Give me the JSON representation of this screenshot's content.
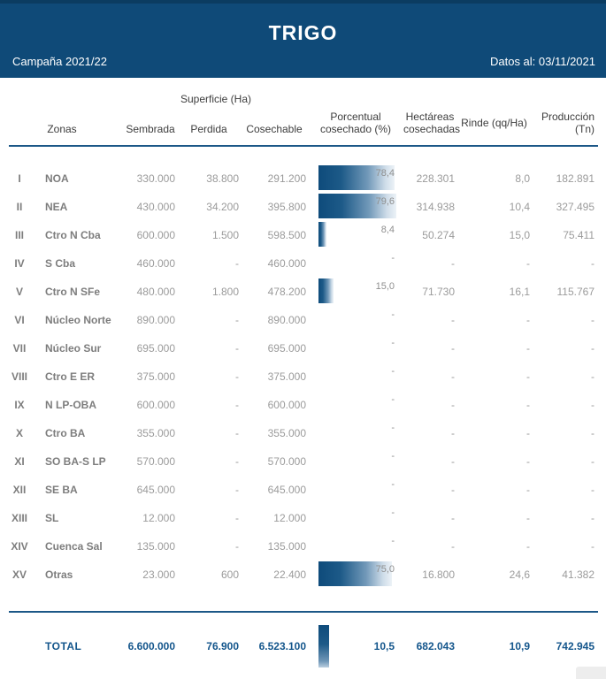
{
  "header": {
    "title": "TRIGO",
    "campaign": "Campaña 2021/22",
    "data_date": "Datos al: 03/11/2021"
  },
  "table": {
    "group_header": "Superficie (Ha)",
    "columns": {
      "zonas": "Zonas",
      "sembrada": "Sembrada",
      "perdida": "Perdida",
      "cosechable": "Cosechable",
      "pct": "Porcentual cosechado (%)",
      "hectareas": "Hectáreas cosechadas",
      "rinde": "Rinde (qq/Ha)",
      "produccion": "Producción (Tn)"
    },
    "rows": [
      {
        "numeral": "I",
        "zone": "NOA",
        "sembrada": "330.000",
        "perdida": "38.800",
        "cosechable": "291.200",
        "pct_label": "78,4",
        "pct_value": 78.4,
        "hectareas": "228.301",
        "rinde": "8,0",
        "produccion": "182.891"
      },
      {
        "numeral": "II",
        "zone": "NEA",
        "sembrada": "430.000",
        "perdida": "34.200",
        "cosechable": "395.800",
        "pct_label": "79,6",
        "pct_value": 79.6,
        "hectareas": "314.938",
        "rinde": "10,4",
        "produccion": "327.495"
      },
      {
        "numeral": "III",
        "zone": "Ctro N Cba",
        "sembrada": "600.000",
        "perdida": "1.500",
        "cosechable": "598.500",
        "pct_label": "8,4",
        "pct_value": 8.4,
        "hectareas": "50.274",
        "rinde": "15,0",
        "produccion": "75.411"
      },
      {
        "numeral": "IV",
        "zone": "S Cba",
        "sembrada": "460.000",
        "perdida": "-",
        "cosechable": "460.000",
        "pct_label": "-",
        "pct_value": null,
        "hectareas": "-",
        "rinde": "-",
        "produccion": "-"
      },
      {
        "numeral": "V",
        "zone": "Ctro N SFe",
        "sembrada": "480.000",
        "perdida": "1.800",
        "cosechable": "478.200",
        "pct_label": "15,0",
        "pct_value": 15.0,
        "hectareas": "71.730",
        "rinde": "16,1",
        "produccion": "115.767"
      },
      {
        "numeral": "VI",
        "zone": "Núcleo Norte",
        "sembrada": "890.000",
        "perdida": "-",
        "cosechable": "890.000",
        "pct_label": "-",
        "pct_value": null,
        "hectareas": "-",
        "rinde": "-",
        "produccion": "-"
      },
      {
        "numeral": "VII",
        "zone": "Núcleo Sur",
        "sembrada": "695.000",
        "perdida": "-",
        "cosechable": "695.000",
        "pct_label": "-",
        "pct_value": null,
        "hectareas": "-",
        "rinde": "-",
        "produccion": "-"
      },
      {
        "numeral": "VIII",
        "zone": "Ctro E ER",
        "sembrada": "375.000",
        "perdida": "-",
        "cosechable": "375.000",
        "pct_label": "-",
        "pct_value": null,
        "hectareas": "-",
        "rinde": "-",
        "produccion": "-"
      },
      {
        "numeral": "IX",
        "zone": "N LP-OBA",
        "sembrada": "600.000",
        "perdida": "-",
        "cosechable": "600.000",
        "pct_label": "-",
        "pct_value": null,
        "hectareas": "-",
        "rinde": "-",
        "produccion": "-"
      },
      {
        "numeral": "X",
        "zone": "Ctro BA",
        "sembrada": "355.000",
        "perdida": "-",
        "cosechable": "355.000",
        "pct_label": "-",
        "pct_value": null,
        "hectareas": "-",
        "rinde": "-",
        "produccion": "-"
      },
      {
        "numeral": "XI",
        "zone": "SO BA-S LP",
        "sembrada": "570.000",
        "perdida": "-",
        "cosechable": "570.000",
        "pct_label": "-",
        "pct_value": null,
        "hectareas": "-",
        "rinde": "-",
        "produccion": "-"
      },
      {
        "numeral": "XII",
        "zone": "SE BA",
        "sembrada": "645.000",
        "perdida": "-",
        "cosechable": "645.000",
        "pct_label": "-",
        "pct_value": null,
        "hectareas": "-",
        "rinde": "-",
        "produccion": "-"
      },
      {
        "numeral": "XIII",
        "zone": "SL",
        "sembrada": "12.000",
        "perdida": "-",
        "cosechable": "12.000",
        "pct_label": "-",
        "pct_value": null,
        "hectareas": "-",
        "rinde": "-",
        "produccion": "-"
      },
      {
        "numeral": "XIV",
        "zone": "Cuenca Sal",
        "sembrada": "135.000",
        "perdida": "-",
        "cosechable": "135.000",
        "pct_label": "-",
        "pct_value": null,
        "hectareas": "-",
        "rinde": "-",
        "produccion": "-"
      },
      {
        "numeral": "XV",
        "zone": "Otras",
        "sembrada": "23.000",
        "perdida": "600",
        "cosechable": "22.400",
        "pct_label": "75,0",
        "pct_value": 75.0,
        "hectareas": "16.800",
        "rinde": "24,6",
        "produccion": "41.382"
      }
    ],
    "total": {
      "label": "TOTAL",
      "sembrada": "6.600.000",
      "perdida": "76.900",
      "cosechable": "6.523.100",
      "pct_label": "10,5",
      "pct_value": 10.5,
      "hectareas": "682.043",
      "rinde": "10,9",
      "produccion": "742.945"
    }
  },
  "chart_data": {
    "type": "table",
    "title": "TRIGO",
    "subtitle": "Campaña 2021/22 — Datos al: 03/11/2021",
    "categories": [
      "NOA",
      "NEA",
      "Ctro N Cba",
      "S Cba",
      "Ctro N SFe",
      "Núcleo Norte",
      "Núcleo Sur",
      "Ctro E ER",
      "N LP-OBA",
      "Ctro BA",
      "SO BA-S LP",
      "SE BA",
      "SL",
      "Cuenca Sal",
      "Otras"
    ],
    "series": [
      {
        "name": "Superficie sembrada (Ha)",
        "values": [
          330000,
          430000,
          600000,
          460000,
          480000,
          890000,
          695000,
          375000,
          600000,
          355000,
          570000,
          645000,
          12000,
          135000,
          23000
        ]
      },
      {
        "name": "Superficie perdida (Ha)",
        "values": [
          38800,
          34200,
          1500,
          null,
          1800,
          null,
          null,
          null,
          null,
          null,
          null,
          null,
          null,
          null,
          600
        ]
      },
      {
        "name": "Superficie cosechable (Ha)",
        "values": [
          291200,
          395800,
          598500,
          460000,
          478200,
          890000,
          695000,
          375000,
          600000,
          355000,
          570000,
          645000,
          12000,
          135000,
          22400
        ]
      },
      {
        "name": "Porcentual cosechado (%)",
        "values": [
          78.4,
          79.6,
          8.4,
          null,
          15.0,
          null,
          null,
          null,
          null,
          null,
          null,
          null,
          null,
          null,
          75.0
        ]
      },
      {
        "name": "Hectáreas cosechadas",
        "values": [
          228301,
          314938,
          50274,
          null,
          71730,
          null,
          null,
          null,
          null,
          null,
          null,
          null,
          null,
          null,
          16800
        ]
      },
      {
        "name": "Rinde (qq/Ha)",
        "values": [
          8.0,
          10.4,
          15.0,
          null,
          16.1,
          null,
          null,
          null,
          null,
          null,
          null,
          null,
          null,
          null,
          24.6
        ]
      },
      {
        "name": "Producción (Tn)",
        "values": [
          182891,
          327495,
          75411,
          null,
          115767,
          null,
          null,
          null,
          null,
          null,
          null,
          null,
          null,
          null,
          41382
        ]
      }
    ],
    "totals": {
      "sembrada": 6600000,
      "perdida": 76900,
      "cosechable": 6523100,
      "pct": 10.5,
      "hectareas": 682043,
      "rinde": 10.9,
      "produccion": 742945
    },
    "embedded_bar": {
      "column": "Porcentual cosechado (%)",
      "xlim": [
        0,
        100
      ],
      "style": "horizontal gradient dark-blue to white"
    }
  }
}
